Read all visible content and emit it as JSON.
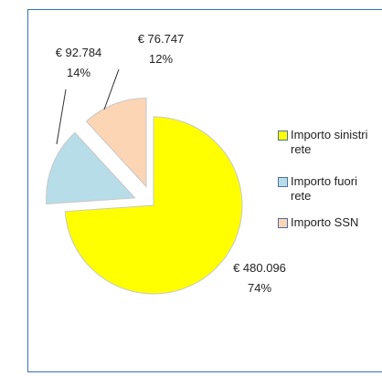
{
  "chart_data": {
    "type": "pie",
    "categories": [
      "Importo sinistri rete",
      "Importo fuori rete",
      "Importo   SSN"
    ],
    "values": [
      480096,
      92784,
      76747
    ],
    "value_labels": [
      "€ 480.096",
      "€ 92.784",
      "€ 76.747"
    ],
    "percent_labels": [
      "74%",
      "14%",
      "12%"
    ],
    "colors": [
      "#ffff00",
      "#b7dde8",
      "#fcd5b5"
    ],
    "legend": "right"
  }
}
